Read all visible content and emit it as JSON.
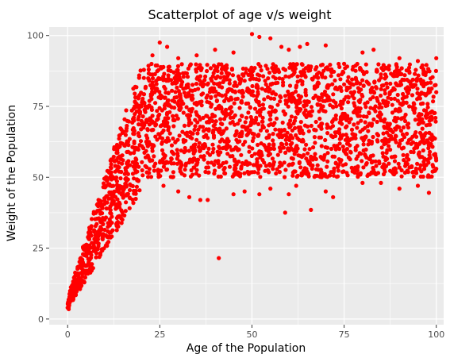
{
  "chart_data": {
    "type": "scatter",
    "title": "Scatterplot of age v/s weight",
    "xlabel": "Age of the Population",
    "ylabel": "Weight of the Population",
    "xlim": [
      -5,
      102
    ],
    "ylim": [
      -2,
      103
    ],
    "xticks": [
      0,
      25,
      50,
      75,
      100
    ],
    "yticks": [
      0,
      25,
      50,
      75,
      100
    ],
    "grid": true,
    "point_color": "#ff0000",
    "panel_color": "#ebebeb",
    "grid_color": "#ffffff",
    "series": [
      {
        "description_points": [
          [
            0,
            4
          ],
          [
            0.3,
            3.5
          ],
          [
            1,
            7
          ],
          [
            2,
            9
          ],
          [
            3,
            12
          ],
          [
            4,
            15
          ],
          [
            5,
            17
          ],
          [
            6,
            21
          ],
          [
            8,
            27
          ],
          [
            10,
            35
          ],
          [
            12,
            43
          ],
          [
            14,
            52
          ],
          [
            15,
            56
          ],
          [
            16,
            62
          ],
          [
            18,
            70
          ],
          [
            20,
            75
          ],
          [
            22,
            88
          ],
          [
            23,
            93
          ],
          [
            25,
            97.5
          ],
          [
            27,
            96
          ],
          [
            30,
            92
          ],
          [
            35,
            93
          ],
          [
            40,
            95
          ],
          [
            41,
            21.5
          ],
          [
            45,
            94
          ],
          [
            50,
            100.5
          ],
          [
            52,
            99.5
          ],
          [
            55,
            99
          ],
          [
            58,
            96
          ],
          [
            59,
            37.5
          ],
          [
            60,
            95
          ],
          [
            63,
            96
          ],
          [
            65,
            97
          ],
          [
            66,
            38.5
          ],
          [
            70,
            96.5
          ],
          [
            75,
            90
          ],
          [
            80,
            94
          ],
          [
            83,
            95
          ],
          [
            90,
            92
          ],
          [
            95,
            91
          ],
          [
            98,
            44.5
          ],
          [
            100,
            92
          ],
          [
            100,
            53
          ],
          [
            100,
            80
          ],
          [
            26,
            47
          ],
          [
            30,
            45
          ],
          [
            33,
            43
          ],
          [
            36,
            42
          ],
          [
            38,
            42
          ],
          [
            45,
            44
          ],
          [
            48,
            45
          ],
          [
            52,
            44
          ],
          [
            55,
            46
          ],
          [
            60,
            44
          ],
          [
            62,
            47
          ],
          [
            70,
            45
          ],
          [
            72,
            43
          ],
          [
            80,
            48
          ],
          [
            85,
            48
          ],
          [
            90,
            46
          ],
          [
            95,
            47
          ],
          [
            99,
            52
          ]
        ],
        "band": {
          "x_min": 0,
          "x_max": 100,
          "growth_end_age": 20,
          "start_weight_range": [
            3.5,
            7
          ],
          "adult_weight_range": [
            50,
            90
          ]
        }
      }
    ]
  }
}
